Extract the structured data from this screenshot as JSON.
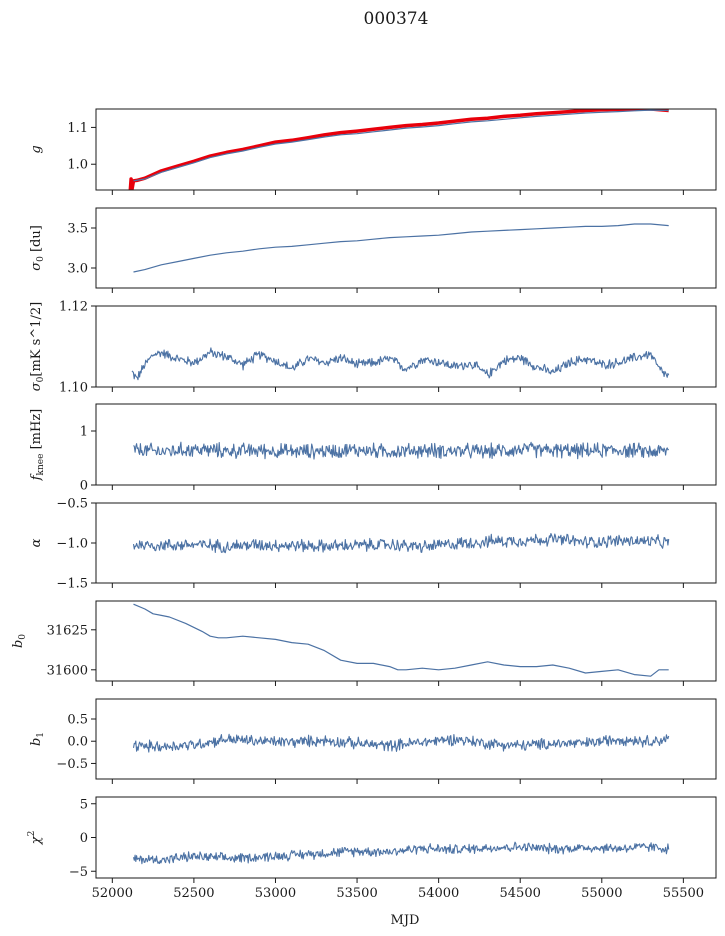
{
  "figure": {
    "title": "000374",
    "xlabel": "MJD",
    "x_range": [
      51900,
      55700
    ],
    "x_ticks": [
      52000,
      52500,
      53000,
      53500,
      54000,
      54500,
      55000,
      55500
    ],
    "x_tick_labels": [
      "52000",
      "52500",
      "53000",
      "53500",
      "54000",
      "54500",
      "55000",
      "55500"
    ]
  },
  "chart_data": [
    {
      "type": "line",
      "ylabel": "g",
      "ylabel_sub": "",
      "ylabel_sup": "",
      "ylim": [
        0.93,
        1.15
      ],
      "y_ticks": [
        1.0,
        1.1
      ],
      "y_tick_labels": [
        "1.0",
        "1.1"
      ],
      "series": [
        {
          "color": "#e8000b",
          "width": 3.5,
          "x": [
            52110,
            52115,
            52120,
            52130,
            52150,
            52200,
            52300,
            52400,
            52500,
            52600,
            52700,
            52800,
            52900,
            53000,
            53100,
            53200,
            53300,
            53400,
            53500,
            53600,
            53700,
            53800,
            53900,
            54000,
            54100,
            54200,
            54300,
            54400,
            54500,
            54600,
            54700,
            54800,
            54900,
            55000,
            55100,
            55200,
            55300,
            55410
          ],
          "y": [
            0.93,
            0.96,
            0.93,
            0.955,
            0.956,
            0.962,
            0.982,
            0.995,
            1.008,
            1.022,
            1.032,
            1.04,
            1.05,
            1.06,
            1.065,
            1.072,
            1.08,
            1.086,
            1.09,
            1.095,
            1.1,
            1.105,
            1.108,
            1.112,
            1.117,
            1.122,
            1.125,
            1.13,
            1.133,
            1.137,
            1.14,
            1.143,
            1.146,
            1.148,
            1.149,
            1.15,
            1.15,
            1.146
          ]
        },
        {
          "color": "#4c72a4",
          "width": 1.2,
          "x": [
            52130,
            52200,
            52300,
            52400,
            52500,
            52600,
            52700,
            52800,
            52900,
            53000,
            53100,
            53200,
            53300,
            53400,
            53500,
            53600,
            53700,
            53800,
            53900,
            54000,
            54100,
            54200,
            54300,
            54400,
            54500,
            54600,
            54700,
            54800,
            54900,
            55000,
            55100,
            55200,
            55300,
            55410
          ],
          "y": [
            0.955,
            0.96,
            0.978,
            0.991,
            1.004,
            1.018,
            1.028,
            1.036,
            1.046,
            1.055,
            1.06,
            1.067,
            1.074,
            1.08,
            1.083,
            1.088,
            1.093,
            1.098,
            1.101,
            1.105,
            1.11,
            1.115,
            1.118,
            1.122,
            1.126,
            1.13,
            1.133,
            1.136,
            1.139,
            1.141,
            1.143,
            1.145,
            1.147,
            1.146
          ]
        }
      ]
    },
    {
      "type": "line",
      "ylabel": "σ",
      "ylabel_sub": "0",
      "ylabel_sup": "",
      "ylabel_suffix": " [du]",
      "ylim": [
        2.75,
        3.75
      ],
      "y_ticks": [
        3.0,
        3.5
      ],
      "y_tick_labels": [
        "3.0",
        "3.5"
      ],
      "series": [
        {
          "color": "#4c72a4",
          "width": 1.2,
          "x": [
            52130,
            52200,
            52300,
            52400,
            52500,
            52600,
            52700,
            52800,
            52900,
            53000,
            53100,
            53200,
            53300,
            53400,
            53500,
            53600,
            53700,
            53800,
            53900,
            54000,
            54100,
            54200,
            54300,
            54400,
            54500,
            54600,
            54700,
            54800,
            54900,
            55000,
            55100,
            55200,
            55300,
            55410
          ],
          "y": [
            2.95,
            2.98,
            3.04,
            3.08,
            3.12,
            3.16,
            3.19,
            3.21,
            3.24,
            3.26,
            3.27,
            3.29,
            3.31,
            3.33,
            3.34,
            3.36,
            3.38,
            3.39,
            3.4,
            3.41,
            3.43,
            3.45,
            3.46,
            3.47,
            3.48,
            3.49,
            3.5,
            3.51,
            3.52,
            3.52,
            3.53,
            3.55,
            3.55,
            3.53
          ]
        }
      ]
    },
    {
      "type": "line",
      "ylabel": "σ",
      "ylabel_sub": "0",
      "ylabel_sup": "",
      "ylabel_suffix": "[mK s^1/2]",
      "ylim": [
        1.1,
        1.12
      ],
      "y_ticks": [
        1.1,
        1.12
      ],
      "y_tick_labels": [
        "1.10",
        "1.12"
      ],
      "series": [
        {
          "color": "#4c72a4",
          "width": 1.1,
          "x": [
            52120,
            52150,
            52200,
            52250,
            52300,
            52400,
            52500,
            52600,
            52700,
            52800,
            52900,
            53000,
            53100,
            53200,
            53300,
            53400,
            53500,
            53600,
            53700,
            53800,
            53900,
            54000,
            54100,
            54200,
            54300,
            54400,
            54500,
            54600,
            54700,
            54800,
            54900,
            55000,
            55100,
            55200,
            55300,
            55350,
            55410
          ],
          "y": [
            1.1037,
            1.102,
            1.1055,
            1.108,
            1.1085,
            1.107,
            1.106,
            1.1085,
            1.1075,
            1.1055,
            1.108,
            1.1065,
            1.1045,
            1.107,
            1.106,
            1.1072,
            1.1055,
            1.106,
            1.107,
            1.1045,
            1.1068,
            1.1062,
            1.105,
            1.1058,
            1.103,
            1.1065,
            1.1072,
            1.105,
            1.1035,
            1.106,
            1.107,
            1.1055,
            1.106,
            1.1072,
            1.1082,
            1.1045,
            1.1025
          ]
        }
      ]
    },
    {
      "type": "line",
      "ylabel": "f",
      "ylabel_sub": "knee",
      "ylabel_sup": "",
      "ylabel_suffix": " [mHz]",
      "ylim": [
        0,
        1.5
      ],
      "y_ticks": [
        0,
        1
      ],
      "y_tick_labels": [
        "0",
        "1"
      ],
      "series": [
        {
          "color": "#4c72a4",
          "width": 1.1,
          "x": [
            52130,
            52300,
            52500,
            52700,
            52900,
            53100,
            53300,
            53500,
            53700,
            53900,
            54100,
            54300,
            54500,
            54700,
            54900,
            55100,
            55300,
            55410
          ],
          "y": [
            0.65,
            0.62,
            0.66,
            0.63,
            0.64,
            0.62,
            0.63,
            0.65,
            0.62,
            0.64,
            0.63,
            0.62,
            0.66,
            0.64,
            0.63,
            0.65,
            0.62,
            0.63
          ]
        }
      ]
    },
    {
      "type": "line",
      "ylabel": "α",
      "ylabel_sub": "",
      "ylabel_sup": "",
      "ylim": [
        -1.5,
        -0.5
      ],
      "y_ticks": [
        -1.5,
        -1.0,
        -0.5
      ],
      "y_tick_labels": [
        "−1.5",
        "−1.0",
        "−0.5"
      ],
      "series": [
        {
          "color": "#4c72a4",
          "width": 1.1,
          "x": [
            52130,
            52300,
            52500,
            52700,
            52900,
            53100,
            53300,
            53500,
            53700,
            53900,
            54100,
            54300,
            54500,
            54700,
            54900,
            55100,
            55300,
            55410
          ],
          "y": [
            -1.02,
            -1.03,
            -1.02,
            -1.04,
            -1.02,
            -1.03,
            -1.04,
            -1.03,
            -1.02,
            -1.05,
            -1.01,
            -0.98,
            -0.97,
            -0.95,
            -0.99,
            -0.97,
            -0.98,
            -1.0
          ]
        }
      ]
    },
    {
      "type": "line",
      "ylabel": "b",
      "ylabel_sub": "0",
      "ylabel_sup": "",
      "ylim": [
        31593,
        31643
      ],
      "y_ticks": [
        31600,
        31625
      ],
      "y_tick_labels": [
        "31600",
        "31625"
      ],
      "series": [
        {
          "color": "#4c72a4",
          "width": 1.2,
          "x": [
            52130,
            52200,
            52250,
            52300,
            52350,
            52450,
            52550,
            52600,
            52650,
            52700,
            52800,
            52900,
            53000,
            53100,
            53200,
            53300,
            53400,
            53500,
            53600,
            53700,
            53750,
            53800,
            53900,
            54000,
            54100,
            54200,
            54300,
            54400,
            54500,
            54600,
            54700,
            54800,
            54900,
            55000,
            55100,
            55200,
            55300,
            55350,
            55410
          ],
          "y": [
            31641,
            31638,
            31635,
            31634,
            31633,
            31629,
            31624,
            31621,
            31620,
            31620,
            31621,
            31620,
            31619,
            31617,
            31616,
            31612,
            31606,
            31604,
            31604,
            31602,
            31600,
            31600,
            31601,
            31600,
            31601,
            31603,
            31605,
            31603,
            31602,
            31602,
            31603,
            31601,
            31598,
            31599,
            31600,
            31597,
            31596,
            31600,
            31600
          ]
        }
      ]
    },
    {
      "type": "line",
      "ylabel": "b",
      "ylabel_sub": "1",
      "ylabel_sup": "",
      "ylim": [
        -0.85,
        0.95
      ],
      "y_ticks": [
        -0.5,
        0.0,
        0.5
      ],
      "y_tick_labels": [
        "−0.5",
        "0.0",
        "0.5"
      ],
      "series": [
        {
          "color": "#4c72a4",
          "width": 1.1,
          "x": [
            52130,
            52300,
            52500,
            52700,
            52900,
            53100,
            53300,
            53500,
            53700,
            53900,
            54100,
            54300,
            54500,
            54700,
            54900,
            55100,
            55300,
            55410
          ],
          "y": [
            -0.1,
            -0.12,
            -0.08,
            0.05,
            0.0,
            -0.02,
            0.02,
            -0.05,
            -0.1,
            -0.02,
            0.05,
            -0.05,
            -0.1,
            -0.05,
            -0.05,
            0.05,
            0.0,
            0.05
          ]
        }
      ]
    },
    {
      "type": "line",
      "ylabel": "χ",
      "ylabel_sub": "",
      "ylabel_sup": "2",
      "ylim": [
        -6,
        6
      ],
      "y_ticks": [
        -5,
        0,
        5
      ],
      "y_tick_labels": [
        "−5",
        "0",
        "5"
      ],
      "series": [
        {
          "color": "#4c72a4",
          "width": 1.1,
          "x": [
            52130,
            52300,
            52500,
            52700,
            52900,
            53100,
            53300,
            53500,
            53700,
            53900,
            54100,
            54300,
            54500,
            54700,
            54900,
            55100,
            55300,
            55410
          ],
          "y": [
            -3.2,
            -3.3,
            -2.8,
            -3.1,
            -2.9,
            -2.6,
            -2.3,
            -2.0,
            -2.1,
            -1.6,
            -1.8,
            -1.5,
            -1.4,
            -1.7,
            -1.5,
            -1.6,
            -1.4,
            -1.7
          ]
        }
      ]
    }
  ]
}
